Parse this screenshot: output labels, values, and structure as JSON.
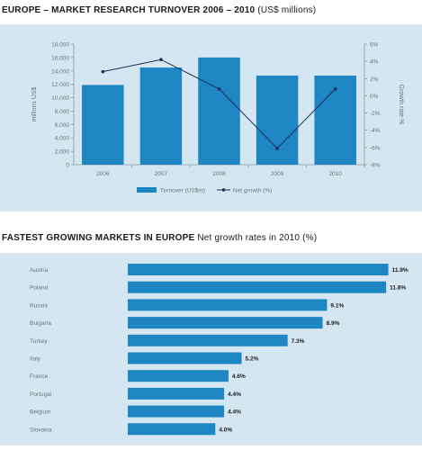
{
  "charts": {
    "top": {
      "title_bold": "EUROPE – MARKET RESEARCH TURNOVER 2006 – 2010",
      "title_normal": "(US$ millions)"
    },
    "bottom": {
      "title_bold": "FASTEST GROWING MARKETS IN EUROPE",
      "title_normal": "Net growth rates in 2010 (%)"
    }
  },
  "colors": {
    "panel_bg": "#d4e6f2",
    "bar": "#1f86c4",
    "line": "#1c2b57",
    "axis_text": "#6a7580"
  },
  "chart_data": [
    {
      "type": "bar",
      "title": "EUROPE – MARKET RESEARCH TURNOVER 2006 – 2010 (US$ millions)",
      "categories": [
        "2006",
        "2007",
        "2008",
        "2009",
        "2010"
      ],
      "ylabel": "millions US$",
      "y2label": "Growth rate %",
      "ylim": [
        0,
        18000
      ],
      "y2lim": [
        -8,
        6
      ],
      "yticks": [
        "0",
        "2,000",
        "4,000",
        "6,000",
        "8,000",
        "10,000",
        "12,000",
        "14,000",
        "16,000",
        "18,000"
      ],
      "y2ticks": [
        "-8%",
        "-6%",
        "-4%",
        "-2%",
        "0%",
        "2%",
        "4%",
        "6%"
      ],
      "grid": false,
      "legend_position": "bottom",
      "series": [
        {
          "name": "Turnover (US$m)",
          "type": "bar",
          "axis": "left",
          "values": [
            11900,
            14500,
            16000,
            13300,
            13300
          ]
        },
        {
          "name": "Net growth (%)",
          "type": "line",
          "axis": "right",
          "values": [
            2.8,
            4.2,
            0.8,
            -6.1,
            0.8
          ]
        }
      ]
    },
    {
      "type": "bar",
      "orientation": "horizontal",
      "title": "FASTEST GROWING MARKETS IN EUROPE Net growth rates in 2010 (%)",
      "categories": [
        "Austria",
        "Poland",
        "Russia",
        "Bulgaria",
        "Turkey",
        "Italy",
        "France",
        "Portugal",
        "Belgium",
        "Slovakia"
      ],
      "values": [
        11.9,
        11.8,
        9.1,
        8.9,
        7.3,
        5.2,
        4.6,
        4.4,
        4.4,
        4.0
      ],
      "value_labels": [
        "11.9%",
        "11.8%",
        "9.1%",
        "8.9%",
        "7.3%",
        "5.2%",
        "4.6%",
        "4.4%",
        "4.4%",
        "4.0%"
      ],
      "xlim": [
        0,
        12
      ]
    }
  ]
}
